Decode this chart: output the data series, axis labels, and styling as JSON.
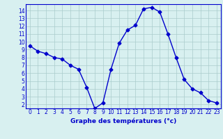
{
  "hours": [
    0,
    1,
    2,
    3,
    4,
    5,
    6,
    7,
    8,
    9,
    10,
    11,
    12,
    13,
    14,
    15,
    16,
    17,
    18,
    19,
    20,
    21,
    22,
    23
  ],
  "temps": [
    9.5,
    8.8,
    8.5,
    8.0,
    7.8,
    7.0,
    6.5,
    4.2,
    1.5,
    2.2,
    6.5,
    9.8,
    11.5,
    12.1,
    14.2,
    14.4,
    13.8,
    11.0,
    8.0,
    5.2,
    4.0,
    3.5,
    2.5,
    2.2
  ],
  "xlabel": "Graphe des températures (°c)",
  "ylim": [
    1.5,
    14.8
  ],
  "xlim": [
    -0.5,
    23.5
  ],
  "yticks": [
    2,
    3,
    4,
    5,
    6,
    7,
    8,
    9,
    10,
    11,
    12,
    13,
    14
  ],
  "xticks": [
    0,
    1,
    2,
    3,
    4,
    5,
    6,
    7,
    8,
    9,
    10,
    11,
    12,
    13,
    14,
    15,
    16,
    17,
    18,
    19,
    20,
    21,
    22,
    23
  ],
  "line_color": "#0000cc",
  "marker": "D",
  "marker_size": 2.5,
  "bg_color": "#d8f0f0",
  "grid_color": "#aacccc",
  "label_color": "#0000cc",
  "spine_color": "#0000cc",
  "tick_fontsize": 5.5,
  "xlabel_fontsize": 6.5
}
